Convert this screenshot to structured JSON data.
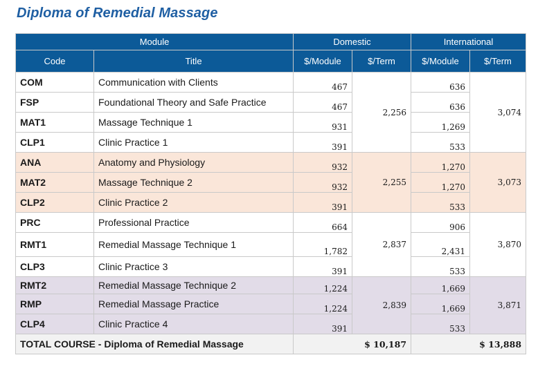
{
  "title": "Diploma of Remedial Massage",
  "headers": {
    "module": "Module",
    "domestic": "Domestic",
    "international": "International",
    "code": "Code",
    "title": "Title",
    "per_module": "$/Module",
    "per_term": "$/Term"
  },
  "groups": [
    {
      "domestic_term": "2,256",
      "international_term": "3,074",
      "rows": [
        {
          "code": "COM",
          "title": "Communication with Clients",
          "domestic": "467",
          "international": "636"
        },
        {
          "code": "FSP",
          "title": "Foundational Theory and Safe Practice",
          "domestic": "467",
          "international": "636"
        },
        {
          "code": "MAT1",
          "title": "Massage Technique 1",
          "domestic": "931",
          "international": "1,269"
        },
        {
          "code": "CLP1",
          "title": "Clinic Practice 1",
          "domestic": "391",
          "international": "533"
        }
      ]
    },
    {
      "domestic_term": "2,255",
      "international_term": "3,073",
      "rows": [
        {
          "code": "ANA",
          "title": "Anatomy and Physiology",
          "domestic": "932",
          "international": "1,270"
        },
        {
          "code": "MAT2",
          "title": "Massage Technique 2",
          "domestic": "932",
          "international": "1,270"
        },
        {
          "code": "CLP2",
          "title": "Clinic Practice 2",
          "domestic": "391",
          "international": "533"
        }
      ]
    },
    {
      "domestic_term": "2,837",
      "international_term": "3,870",
      "rows": [
        {
          "code": "PRC",
          "title": "Professional Practice",
          "domestic": "664",
          "international": "906"
        },
        {
          "code": "RMT1",
          "title": "Remedial Massage Technique 1",
          "domestic": "1,782",
          "international": "2,431"
        },
        {
          "code": "CLP3",
          "title": "Clinic Practice 3",
          "domestic": "391",
          "international": "533"
        }
      ]
    },
    {
      "domestic_term": "2,839",
      "international_term": "3,871",
      "rows": [
        {
          "code": "RMT2",
          "title": "Remedial Massage Technique 2",
          "domestic": "1,224",
          "international": "1,669"
        },
        {
          "code": "RMP",
          "title": "Remedial Massage Practice",
          "domestic": "1,224",
          "international": "1,669"
        },
        {
          "code": "CLP4",
          "title": "Clinic Practice 4",
          "domestic": "391",
          "international": "533"
        }
      ]
    }
  ],
  "total": {
    "label": "TOTAL COURSE - Diploma of Remedial Massage",
    "domestic": "$ 10,187",
    "international": "$ 13,888"
  }
}
